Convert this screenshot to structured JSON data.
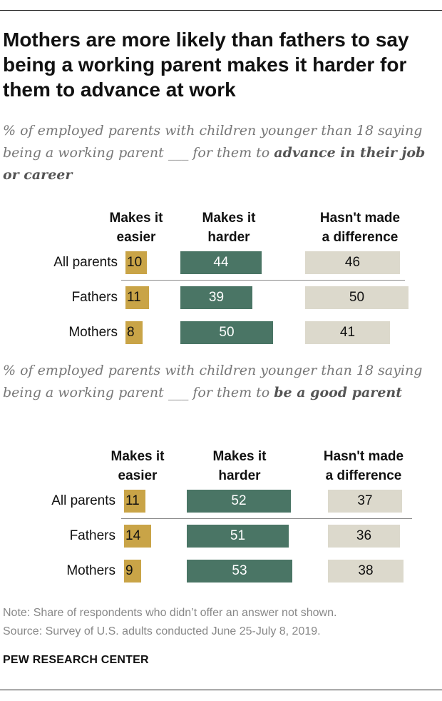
{
  "title": "Mothers are more likely than fathers to say being a working parent makes it harder for them to advance at work",
  "subtitles": [
    {
      "text": "% of employed parents with children younger than 18 saying being a working parent ___ for them to ",
      "bold": "advance in their job or career"
    },
    {
      "text": "% of employed parents with children younger than 18 saying being a working parent ___ for them to ",
      "bold": "be a good parent"
    }
  ],
  "colors": {
    "easier": "#c9a447",
    "harder": "#4a7565",
    "nodiff": "#dcd9cc"
  },
  "chart_data": [
    {
      "type": "bar",
      "stacked": false,
      "title": "Advance in their job or career",
      "categories": [
        "All parents",
        "Fathers",
        "Mothers"
      ],
      "series": [
        {
          "name": "Makes it easier",
          "values": [
            10,
            11,
            8
          ]
        },
        {
          "name": "Makes it harder",
          "values": [
            44,
            39,
            50
          ]
        },
        {
          "name": "Hasn't made a difference",
          "values": [
            46,
            50,
            41
          ]
        }
      ],
      "column_headers": [
        [
          "Makes it",
          "easier"
        ],
        [
          "Makes it",
          "harder"
        ],
        [
          "Hasn't made",
          "a difference"
        ]
      ]
    },
    {
      "type": "bar",
      "stacked": false,
      "title": "Be a good parent",
      "categories": [
        "All parents",
        "Fathers",
        "Mothers"
      ],
      "series": [
        {
          "name": "Makes it easier",
          "values": [
            11,
            14,
            9
          ]
        },
        {
          "name": "Makes it harder",
          "values": [
            52,
            51,
            53
          ]
        },
        {
          "name": "Hasn't made a difference",
          "values": [
            37,
            36,
            38
          ]
        }
      ],
      "column_headers": [
        [
          "Makes it",
          "easier"
        ],
        [
          "Makes it",
          "harder"
        ],
        [
          "Hasn't made",
          "a difference"
        ]
      ]
    }
  ],
  "note": "Note: Share of respondents who didn’t offer an answer not shown.",
  "source": "Source: Survey of U.S. adults conducted June 25-July 8, 2019.",
  "brand": "PEW RESEARCH CENTER"
}
